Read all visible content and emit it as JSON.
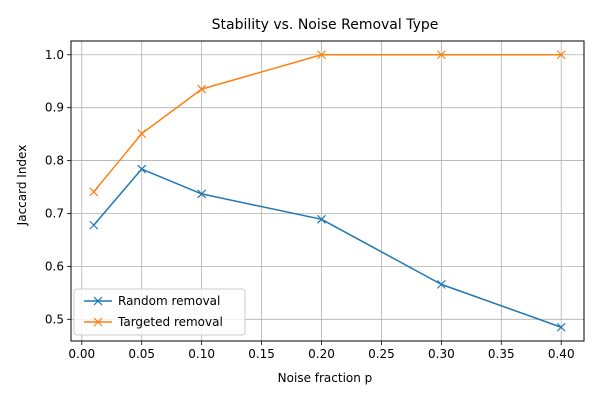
{
  "chart_data": {
    "type": "line",
    "title": "Stability vs. Noise Removal Type",
    "xlabel": "Noise fraction p",
    "ylabel": "Jaccard Index",
    "xlim": [
      -0.009,
      0.419
    ],
    "ylim": [
      0.459,
      1.026
    ],
    "xticks": [
      0.0,
      0.05,
      0.1,
      0.15,
      0.2,
      0.25,
      0.3,
      0.35,
      0.4
    ],
    "xtick_labels": [
      "0.00",
      "0.05",
      "0.10",
      "0.15",
      "0.20",
      "0.25",
      "0.30",
      "0.35",
      "0.40"
    ],
    "yticks": [
      0.5,
      0.6,
      0.7,
      0.8,
      0.9,
      1.0
    ],
    "ytick_labels": [
      "0.5",
      "0.6",
      "0.7",
      "0.8",
      "0.9",
      "1.0"
    ],
    "grid": true,
    "legend_position": "lower-left",
    "x": [
      0.01,
      0.05,
      0.1,
      0.2,
      0.3,
      0.4
    ],
    "series": [
      {
        "name": "Random removal",
        "color": "#1f77b4",
        "marker": "x",
        "values": [
          0.678,
          0.784,
          0.737,
          0.689,
          0.566,
          0.485
        ]
      },
      {
        "name": "Targeted removal",
        "color": "#ff7f0e",
        "marker": "x",
        "values": [
          0.741,
          0.851,
          0.935,
          1.0,
          1.0,
          1.0
        ]
      }
    ]
  }
}
